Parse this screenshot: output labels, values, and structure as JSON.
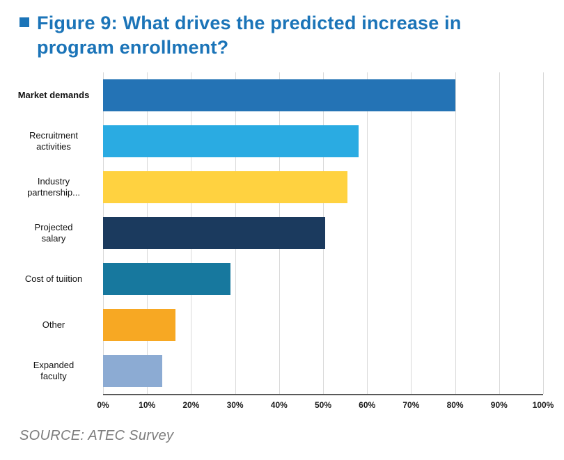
{
  "header": {
    "title": "Figure 9: What drives the predicted increase in program enrollment?",
    "accent_color": "#1b74b8"
  },
  "source": {
    "text": "SOURCE: ATEC Survey"
  },
  "chart_data": {
    "type": "bar",
    "orientation": "horizontal",
    "title": "Figure 9: What drives the predicted increase in program enrollment?",
    "categories": [
      "Market demands",
      "Recruitment activities",
      "Industry partnership...",
      "Projected salary",
      "Cost of tuiition",
      "Other",
      "Expanded faculty"
    ],
    "label_lines": [
      [
        "Market demands"
      ],
      [
        "Recruitment",
        "activities"
      ],
      [
        "Industry",
        "partnership..."
      ],
      [
        "Projected",
        "salary"
      ],
      [
        "Cost of tuiition"
      ],
      [
        "Other"
      ],
      [
        "Expanded",
        "faculty"
      ]
    ],
    "bold_labels": [
      true,
      false,
      false,
      false,
      false,
      false,
      false
    ],
    "values": [
      80,
      58,
      55.5,
      50.5,
      29,
      16.5,
      13.5
    ],
    "colors": [
      "#2473b5",
      "#2aabe2",
      "#ffd240",
      "#1b3a5e",
      "#17789e",
      "#f7a823",
      "#8cabd3"
    ],
    "xlim": [
      0,
      100
    ],
    "x_tick_labels": [
      "0%",
      "10%",
      "20%",
      "30%",
      "40%",
      "50%",
      "60%",
      "70%",
      "80%",
      "90%",
      "100%"
    ],
    "grid": true,
    "legend": false
  }
}
